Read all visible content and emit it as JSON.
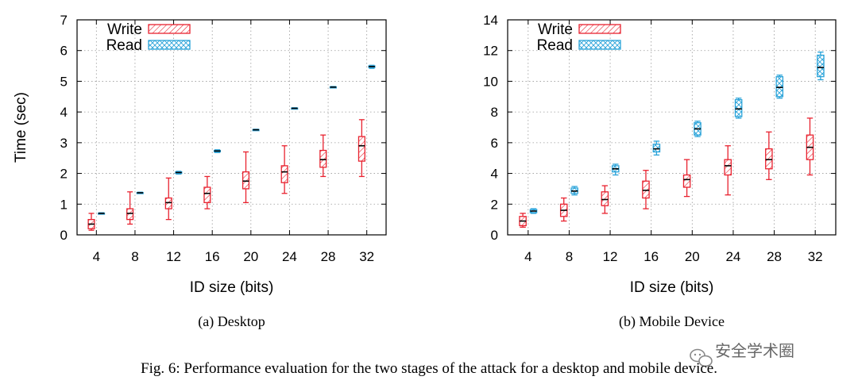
{
  "figure_caption": "Fig. 6: Performance evaluation for the two stages of the attack for a desktop and mobile device.",
  "watermark": "安全学术圈",
  "colors": {
    "write": "#e8222f",
    "read": "#2aa3d9",
    "box_fill_write": "#f08a8f",
    "box_fill_read": "#8fd2ee"
  },
  "chart_data": [
    {
      "type": "box",
      "subcaption": "(a) Desktop",
      "xlabel": "ID size (bits)",
      "ylabel": "Time (sec)",
      "categories": [
        "4",
        "8",
        "12",
        "16",
        "20",
        "24",
        "28",
        "32"
      ],
      "ylim": [
        0,
        7
      ],
      "yticks": [
        "0",
        "1",
        "2",
        "3",
        "4",
        "5",
        "6",
        "7"
      ],
      "grid": true,
      "legend": "top-left",
      "series": [
        {
          "name": "Write",
          "min": [
            0.15,
            0.35,
            0.5,
            0.85,
            1.05,
            1.35,
            1.9,
            1.9
          ],
          "q1": [
            0.2,
            0.5,
            0.85,
            1.05,
            1.5,
            1.7,
            2.2,
            2.4
          ],
          "median": [
            0.35,
            0.7,
            1.05,
            1.35,
            1.75,
            2.05,
            2.45,
            2.9
          ],
          "q3": [
            0.5,
            0.85,
            1.2,
            1.55,
            2.05,
            2.25,
            2.75,
            3.2
          ],
          "max": [
            0.7,
            1.4,
            1.85,
            1.9,
            2.7,
            2.9,
            3.25,
            3.75
          ]
        },
        {
          "name": "Read",
          "min": [
            0.68,
            1.35,
            1.98,
            2.68,
            3.4,
            4.1,
            4.8,
            5.42
          ],
          "q1": [
            0.69,
            1.36,
            2.0,
            2.7,
            3.41,
            4.11,
            4.8,
            5.45
          ],
          "median": [
            0.7,
            1.37,
            2.03,
            2.73,
            3.42,
            4.12,
            4.81,
            5.48
          ],
          "q3": [
            0.71,
            1.38,
            2.05,
            2.75,
            3.43,
            4.13,
            4.82,
            5.5
          ],
          "max": [
            0.72,
            1.39,
            2.07,
            2.77,
            3.44,
            4.14,
            4.83,
            5.52
          ]
        }
      ]
    },
    {
      "type": "box",
      "subcaption": "(b) Mobile Device",
      "xlabel": "ID size (bits)",
      "ylabel": "",
      "categories": [
        "4",
        "8",
        "12",
        "16",
        "20",
        "24",
        "28",
        "32"
      ],
      "ylim": [
        0,
        14
      ],
      "yticks": [
        "0",
        "2",
        "4",
        "6",
        "8",
        "10",
        "12",
        "14"
      ],
      "grid": true,
      "legend": "top-left",
      "series": [
        {
          "name": "Write",
          "min": [
            0.5,
            0.9,
            1.4,
            1.7,
            2.5,
            2.6,
            3.6,
            3.9
          ],
          "q1": [
            0.6,
            1.2,
            1.9,
            2.4,
            3.1,
            3.9,
            4.3,
            4.9
          ],
          "median": [
            0.9,
            1.6,
            2.3,
            2.9,
            3.6,
            4.5,
            4.9,
            5.7
          ],
          "q3": [
            1.2,
            2.0,
            2.8,
            3.5,
            3.9,
            4.9,
            5.6,
            6.5
          ],
          "max": [
            1.4,
            2.4,
            3.2,
            4.2,
            4.9,
            5.8,
            6.7,
            7.6
          ]
        },
        {
          "name": "Read",
          "min": [
            1.4,
            2.6,
            3.9,
            5.2,
            6.4,
            7.6,
            8.9,
            10.1
          ],
          "q1": [
            1.45,
            2.7,
            4.1,
            5.4,
            6.5,
            7.7,
            9.0,
            10.3
          ],
          "median": [
            1.55,
            2.85,
            4.3,
            5.6,
            6.9,
            8.2,
            9.6,
            10.9
          ],
          "q3": [
            1.65,
            3.05,
            4.5,
            5.9,
            7.3,
            8.8,
            10.3,
            11.7
          ],
          "max": [
            1.7,
            3.15,
            4.6,
            6.1,
            7.4,
            8.9,
            10.4,
            11.9
          ]
        }
      ]
    }
  ]
}
